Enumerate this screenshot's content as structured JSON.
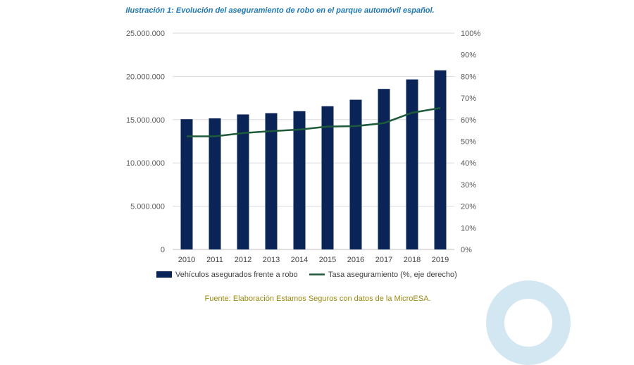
{
  "caption": "Ilustración 1: Evolución del aseguramiento de robo en el parque automóvil español.",
  "source": "Fuente: Elaboración Estamos Seguros con datos de la MicroESA.",
  "colors": {
    "caption": "#1f78b4",
    "bars": "#0b2458",
    "line": "#1d5b3a",
    "grid": "#d9d9d9",
    "ticks": "#595959",
    "source": "#9a8a12",
    "deco": "#d3e7f2"
  },
  "chart_data": {
    "type": "bar",
    "categories": [
      "2010",
      "2011",
      "2012",
      "2013",
      "2014",
      "2015",
      "2016",
      "2017",
      "2018",
      "2019"
    ],
    "series": [
      {
        "name": "Vehículos asegurados frente a robo",
        "type": "bar",
        "axis": "left",
        "values": [
          15050000,
          15150000,
          15600000,
          15750000,
          15980000,
          16550000,
          17300000,
          18550000,
          19650000,
          20700000
        ]
      },
      {
        "name": "Tasa aseguramiento (%, eje derecho)",
        "type": "line",
        "axis": "right",
        "values": [
          52.3,
          52.3,
          53.8,
          54.7,
          55.4,
          56.8,
          57.0,
          58.4,
          63.2,
          65.4
        ]
      }
    ],
    "y_left": {
      "range": [
        0,
        25000000
      ],
      "ticks": [
        "0",
        "5.000.000",
        "10.000.000",
        "15.000.000",
        "20.000.000",
        "25.000.000"
      ]
    },
    "y_right": {
      "range": [
        0,
        100
      ],
      "ticks": [
        "0%",
        "10%",
        "20%",
        "30%",
        "40%",
        "50%",
        "60%",
        "70%",
        "80%",
        "90%",
        "100%"
      ]
    },
    "grid": true,
    "legend_position": "bottom"
  }
}
